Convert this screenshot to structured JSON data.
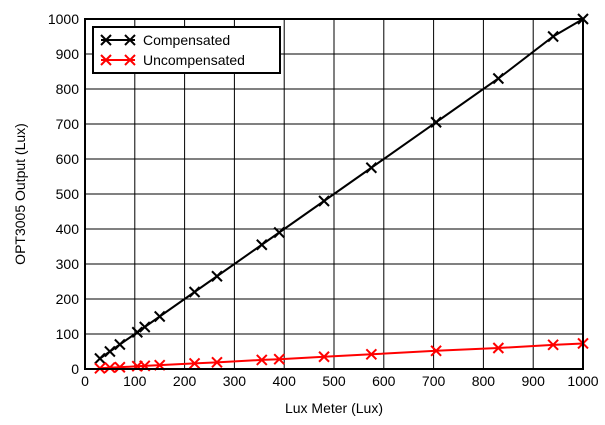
{
  "chart_data": {
    "type": "line",
    "title": "",
    "xlabel": "Lux Meter (Lux)",
    "ylabel": "OPT3005 Output (Lux)",
    "xlim": [
      0,
      1000
    ],
    "ylim": [
      0,
      1000
    ],
    "x_ticks": [
      0,
      100,
      200,
      300,
      400,
      500,
      600,
      700,
      800,
      900,
      1000
    ],
    "y_ticks": [
      0,
      100,
      200,
      300,
      400,
      500,
      600,
      700,
      800,
      900,
      1000
    ],
    "grid": true,
    "legend_position": "top-left",
    "series": [
      {
        "name": "Compensated",
        "color": "#000000",
        "marker": "x",
        "x": [
          30,
          50,
          70,
          105,
          120,
          150,
          220,
          265,
          355,
          390,
          480,
          575,
          705,
          830,
          940,
          1000
        ],
        "y": [
          30,
          50,
          70,
          105,
          120,
          150,
          220,
          265,
          355,
          390,
          480,
          575,
          705,
          830,
          950,
          1000
        ]
      },
      {
        "name": "Uncompensated",
        "color": "#ff0000",
        "marker": "x",
        "x": [
          30,
          50,
          70,
          105,
          120,
          150,
          220,
          265,
          355,
          390,
          480,
          575,
          705,
          830,
          940,
          1000
        ],
        "y": [
          2,
          4,
          5,
          8,
          9,
          11,
          16,
          19,
          26,
          28,
          35,
          42,
          52,
          60,
          69,
          73
        ]
      }
    ]
  }
}
